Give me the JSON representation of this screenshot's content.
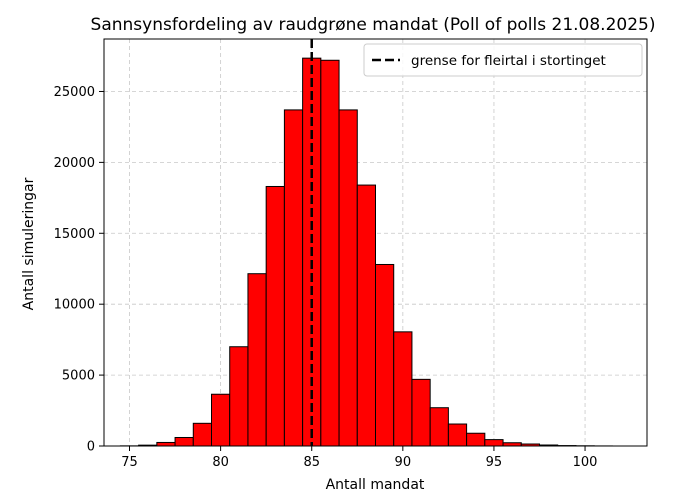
{
  "chart_data": {
    "type": "bar",
    "title": "Sannsynsfordeling av raudgrøne mandat (Poll of polls 21.08.2025)",
    "xlabel": "Antall mandat",
    "ylabel": "Antall simuleringar",
    "xlim": [
      73.6,
      103.4
    ],
    "ylim": [
      0,
      28700
    ],
    "bin_width": 1,
    "x": [
      75,
      76,
      77,
      78,
      79,
      80,
      81,
      82,
      83,
      84,
      85,
      86,
      87,
      88,
      89,
      90,
      91,
      92,
      93,
      94,
      95,
      96,
      97,
      98,
      99,
      100,
      101
    ],
    "values": [
      10,
      60,
      250,
      600,
      1600,
      3650,
      7000,
      12150,
      18300,
      23700,
      27350,
      27200,
      23700,
      18400,
      12800,
      8050,
      4700,
      2700,
      1550,
      900,
      450,
      230,
      140,
      70,
      30,
      15,
      5
    ],
    "x_ticks": [
      75,
      80,
      85,
      90,
      95,
      100
    ],
    "x_tick_labels": [
      "75",
      "80",
      "85",
      "90",
      "95",
      "100"
    ],
    "y_ticks": [
      0,
      5000,
      10000,
      15000,
      20000,
      25000
    ],
    "y_tick_labels": [
      "0",
      "5000",
      "10000",
      "15000",
      "20000",
      "25000"
    ],
    "grid": true,
    "bar_color": "#ff0000",
    "bar_edge_color": "#000000",
    "threshold": {
      "x": 85,
      "label": "grense for fleirtal i stortinget",
      "style": "dashed",
      "color": "#000000"
    },
    "legend_position": "top-right"
  }
}
